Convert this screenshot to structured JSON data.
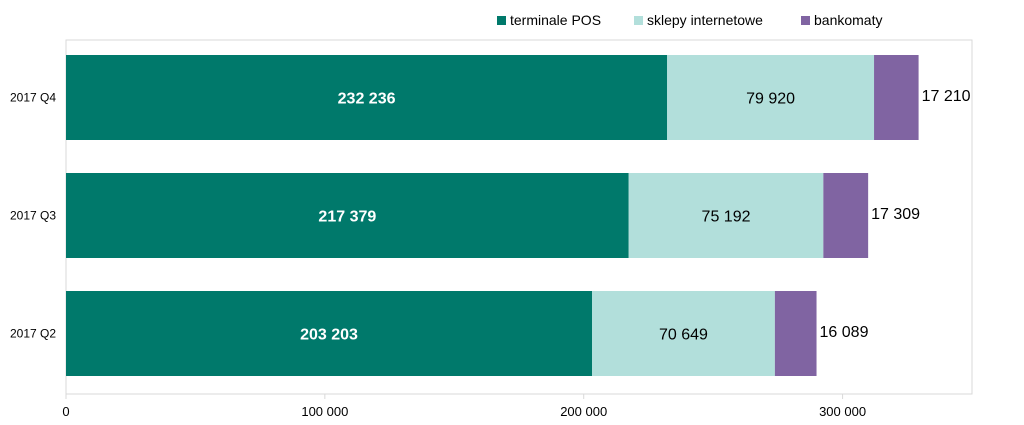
{
  "chart_data": {
    "type": "bar",
    "orientation": "horizontal",
    "stacked": true,
    "categories": [
      "2017 Q4",
      "2017 Q3",
      "2017 Q2"
    ],
    "series": [
      {
        "name": "terminale POS",
        "values": [
          232236,
          217379,
          203203
        ],
        "labels": [
          "232 236",
          "217 379",
          "203 203"
        ],
        "color": "#00796B"
      },
      {
        "name": "sklepy internetowe",
        "values": [
          79920,
          75192,
          70649
        ],
        "labels": [
          "79 920",
          "75 192",
          "70 649"
        ],
        "color": "#B2DFDB"
      },
      {
        "name": "bankomaty",
        "values": [
          17210,
          17309,
          16089
        ],
        "labels": [
          "17 210",
          "17 309",
          "16 089"
        ],
        "color": "#8064A2"
      }
    ],
    "xlim": [
      0,
      350000
    ],
    "xticks": [
      0,
      100000,
      200000,
      300000
    ],
    "xtick_labels": [
      "0",
      "100 000",
      "200 000",
      "300 000"
    ],
    "legend_position": "top-right",
    "grid": false
  }
}
